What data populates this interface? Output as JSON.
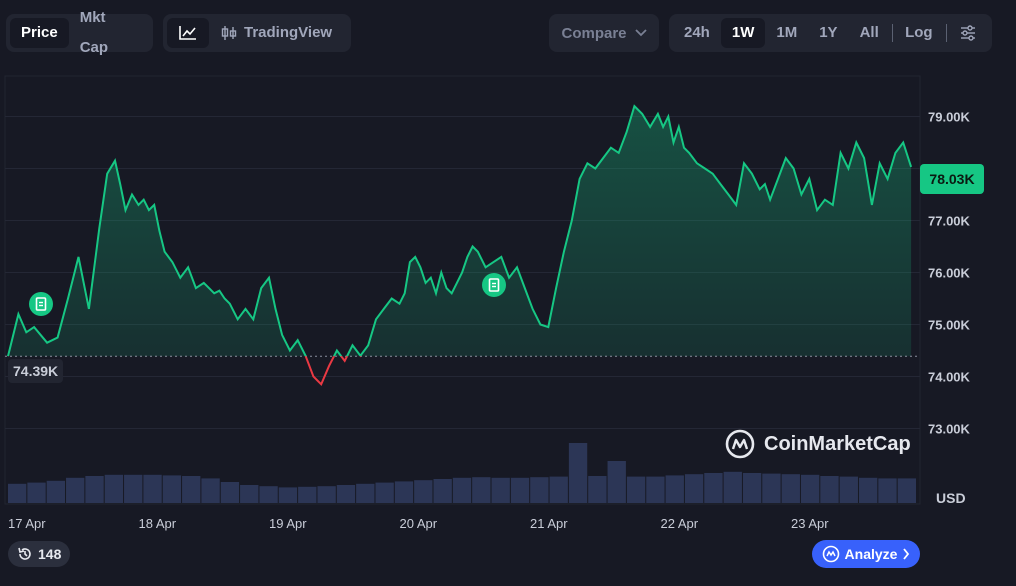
{
  "toolbar": {
    "price_label": "Price",
    "mktcap_label": "Mkt Cap",
    "tradingview_label": "TradingView",
    "compare_label": "Compare",
    "ranges": [
      "24h",
      "1W",
      "1M",
      "1Y",
      "All"
    ],
    "active_range": "1W",
    "log_label": "Log"
  },
  "badges": {
    "current_price": "78.03K",
    "open_price": "74.39K",
    "history_count": "148",
    "analyze_label": "Analyze"
  },
  "watermark": "CoinMarketCap",
  "chart_data": {
    "type": "area",
    "y_unit": "USD",
    "y_ticks": [
      "73.00K",
      "74.00K",
      "75.00K",
      "76.00K",
      "77.00K",
      "78.00K",
      "79.00K"
    ],
    "x_ticks": [
      "17 Apr",
      "18 Apr",
      "19 Apr",
      "20 Apr",
      "21 Apr",
      "22 Apr",
      "23 Apr"
    ],
    "ylim": [
      72500,
      79900
    ],
    "reference_price": 74390,
    "grid": "horizontal",
    "colors": {
      "up": "#16c784",
      "down": "#ea3943",
      "volume": "#2f3a5c",
      "background": "#171924"
    },
    "series": [
      {
        "x": [
          0,
          0.08,
          0.14,
          0.2,
          0.3,
          0.38,
          0.46,
          0.54,
          0.62,
          0.7,
          0.76,
          0.82,
          0.86,
          0.9,
          0.95,
          1.0,
          1.04,
          1.08,
          1.12,
          1.16,
          1.2,
          1.26,
          1.32,
          1.38,
          1.44,
          1.5,
          1.54,
          1.58,
          1.62,
          1.66,
          1.7,
          1.76,
          1.82,
          1.88,
          1.94,
          2.0,
          2.05,
          2.1,
          2.16,
          2.22,
          2.28,
          2.34,
          2.4,
          2.46,
          2.52,
          2.58,
          2.64,
          2.7,
          2.76,
          2.82,
          2.88,
          2.94,
          3.0,
          3.04,
          3.08,
          3.12,
          3.16,
          3.2,
          3.24,
          3.28,
          3.32,
          3.36,
          3.4,
          3.44,
          3.48,
          3.52,
          3.56,
          3.6,
          3.66,
          3.72,
          3.78,
          3.84,
          3.9,
          3.96,
          4.02,
          4.08,
          4.14,
          4.2,
          4.26,
          4.32,
          4.38,
          4.44,
          4.5,
          4.56,
          4.62,
          4.68,
          4.74,
          4.8,
          4.86,
          4.92,
          4.98,
          5.02,
          5.06,
          5.1,
          5.14,
          5.18,
          5.22,
          5.28,
          5.34,
          5.4,
          5.46,
          5.52,
          5.58,
          5.64,
          5.7,
          5.76,
          5.8,
          5.84,
          5.9,
          5.96,
          6.02,
          6.08,
          6.14,
          6.2,
          6.26,
          6.32,
          6.38,
          6.44,
          6.5,
          6.56,
          6.62,
          6.68,
          6.74,
          6.8,
          6.86,
          6.92
        ],
        "values": [
          74390,
          75200,
          74850,
          74950,
          74650,
          74750,
          75500,
          76300,
          75300,
          76850,
          77900,
          78150,
          77700,
          77200,
          77500,
          77300,
          77400,
          77200,
          77300,
          76800,
          76400,
          76200,
          75900,
          76100,
          75700,
          75800,
          75700,
          75600,
          75650,
          75500,
          75400,
          75100,
          75300,
          75100,
          75700,
          75900,
          75300,
          74800,
          74500,
          74700,
          74400,
          74000,
          73850,
          74200,
          74500,
          74300,
          74600,
          74400,
          74600,
          75100,
          75300,
          75500,
          75400,
          75600,
          76200,
          76300,
          76100,
          75800,
          75900,
          75600,
          76000,
          75700,
          75600,
          75800,
          76000,
          76300,
          76500,
          76400,
          76100,
          76200,
          76300,
          75900,
          76100,
          75700,
          75300,
          75000,
          74950,
          75700,
          76400,
          77000,
          77800,
          78100,
          78000,
          78200,
          78400,
          78300,
          78700,
          79200,
          79050,
          78800,
          79050,
          78800,
          79000,
          78500,
          78800,
          78400,
          78300,
          78100,
          78000,
          77900,
          77700,
          77500,
          77300,
          78100,
          77900,
          77600,
          77700,
          77400,
          77800,
          78200,
          78000,
          77500,
          77800,
          77200,
          77400,
          77300,
          78300,
          78000,
          78500,
          78200,
          77300,
          78100,
          77800,
          78300,
          78500,
          78030
        ]
      }
    ],
    "volume": [
      0.32,
      0.34,
      0.37,
      0.42,
      0.45,
      0.47,
      0.47,
      0.47,
      0.46,
      0.45,
      0.41,
      0.35,
      0.3,
      0.28,
      0.26,
      0.27,
      0.28,
      0.3,
      0.32,
      0.34,
      0.36,
      0.38,
      0.4,
      0.42,
      0.43,
      0.42,
      0.42,
      0.43,
      0.44,
      1.0,
      0.45,
      0.7,
      0.44,
      0.44,
      0.46,
      0.48,
      0.5,
      0.52,
      0.5,
      0.49,
      0.48,
      0.47,
      0.45,
      0.44,
      0.42,
      0.41,
      0.41
    ]
  }
}
